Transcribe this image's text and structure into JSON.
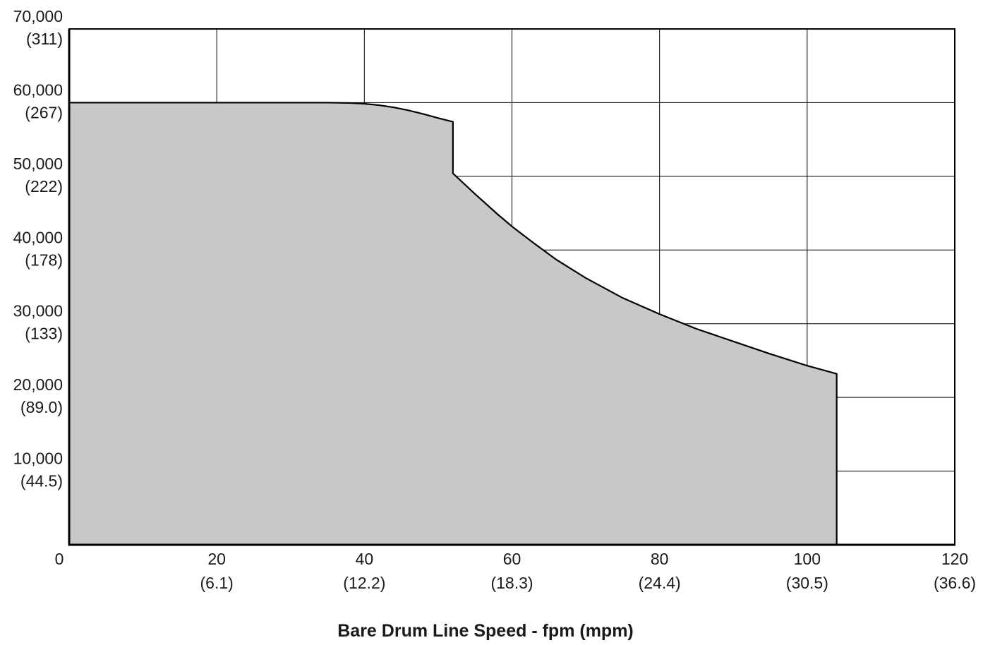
{
  "chart_data": {
    "type": "area",
    "title": "",
    "xlabel": "Bare Drum Line Speed  -  fpm (mpm)",
    "ylabel": "",
    "xlim": [
      0,
      120
    ],
    "ylim": [
      0,
      70000
    ],
    "grid": true,
    "fill_color": "#c8c8c8",
    "line_color": "#000000",
    "x_ticks": [
      {
        "value": 0,
        "primary": "0",
        "secondary": ""
      },
      {
        "value": 20,
        "primary": "20",
        "secondary": "(6.1)"
      },
      {
        "value": 40,
        "primary": "40",
        "secondary": "(12.2)"
      },
      {
        "value": 60,
        "primary": "60",
        "secondary": "(18.3)"
      },
      {
        "value": 80,
        "primary": "80",
        "secondary": "(24.4)"
      },
      {
        "value": 100,
        "primary": "100",
        "secondary": "(30.5)"
      },
      {
        "value": 120,
        "primary": "120",
        "secondary": "(36.6)"
      }
    ],
    "y_ticks": [
      {
        "value": 10000,
        "primary": "10,000",
        "secondary": "(44.5)"
      },
      {
        "value": 20000,
        "primary": "20,000",
        "secondary": "(89.0)"
      },
      {
        "value": 30000,
        "primary": "30,000",
        "secondary": "(133)"
      },
      {
        "value": 40000,
        "primary": "40,000",
        "secondary": "(178)"
      },
      {
        "value": 50000,
        "primary": "50,000",
        "secondary": "(222)"
      },
      {
        "value": 60000,
        "primary": "60,000",
        "secondary": "(267)"
      },
      {
        "value": 70000,
        "primary": "70,000",
        "secondary": "(311)"
      }
    ],
    "series": [
      {
        "x": [
          0,
          20,
          35,
          38,
          40,
          42,
          44,
          46,
          48,
          50,
          52,
          52,
          55,
          58,
          60,
          63,
          66,
          70,
          75,
          80,
          85,
          90,
          95,
          100,
          104,
          104
        ],
        "y": [
          60000,
          60000,
          60000,
          59950,
          59850,
          59650,
          59350,
          58950,
          58450,
          57900,
          57400,
          50400,
          47600,
          44900,
          43200,
          40900,
          38700,
          36200,
          33500,
          31300,
          29300,
          27600,
          25900,
          24300,
          23200,
          0
        ]
      }
    ]
  }
}
